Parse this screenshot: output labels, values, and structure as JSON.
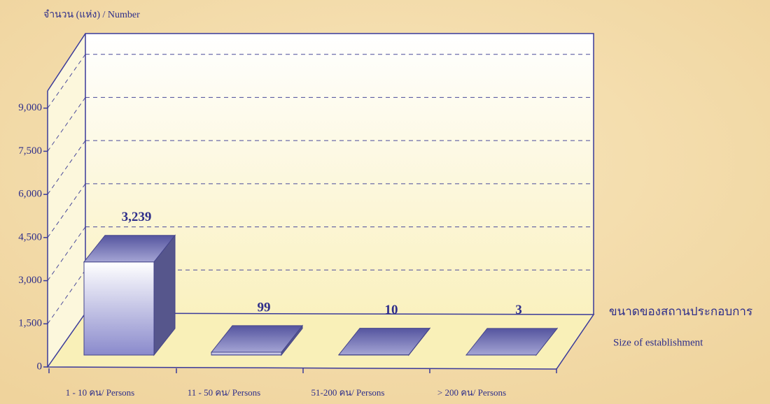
{
  "chart_data": {
    "type": "bar3d",
    "y_label": "จำนวน (แห่ง) / Number",
    "x_label": "ขนาดของสถานประกอบการ",
    "x_label_en": "Size of establishment",
    "categories": [
      "1 - 10 คน/ Persons",
      "11 - 50 คน/  Persons",
      "51-200 คน/ Persons",
      "> 200 คน/ Persons"
    ],
    "values": [
      3239,
      99,
      10,
      3
    ],
    "value_labels": [
      "3,239",
      "99",
      "10",
      "3"
    ],
    "color": "#6a6ab8",
    "ylim": [
      0,
      9600
    ],
    "yticks": [
      0,
      {
        "value": 1500,
        "label": "1,500"
      },
      {
        "value": 3000,
        "label": "3,000"
      },
      {
        "value": 4500,
        "label": "4,500"
      },
      {
        "value": 6000,
        "label": "6,000"
      },
      {
        "value": 7500,
        "label": "7,500"
      },
      {
        "value": 9000,
        "label": "9,000"
      }
    ],
    "grid": true
  }
}
